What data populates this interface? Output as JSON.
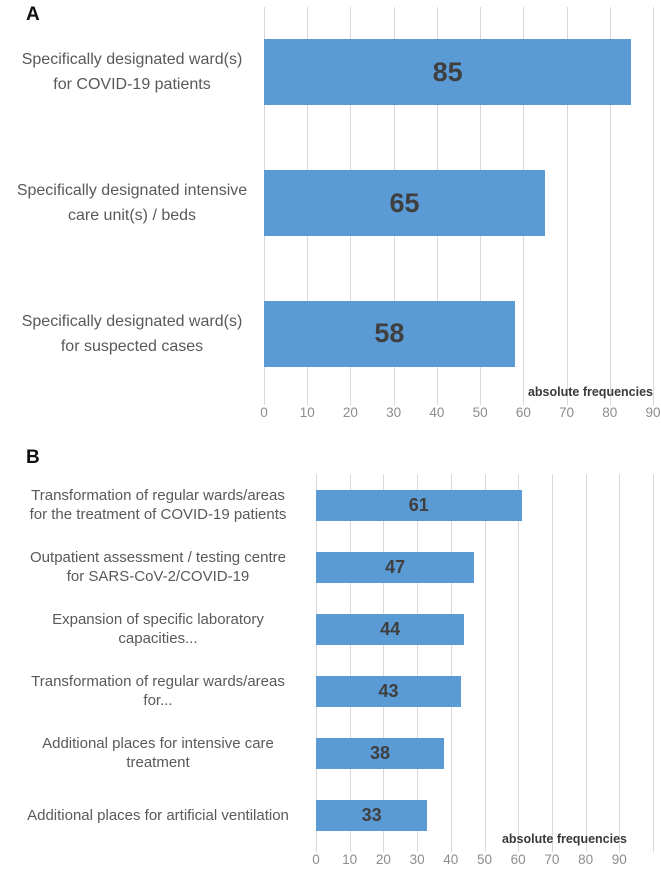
{
  "page": {
    "background": "#ffffff"
  },
  "chart_data": [
    {
      "panel_label": "A",
      "type": "bar",
      "orientation": "horizontal",
      "title": "",
      "categories": [
        "Specifically designated ward(s) for COVID-19 patients",
        "Specifically designated intensive care unit(s) / beds",
        "Specifically designated ward(s) for suspected cases"
      ],
      "category_lines": [
        [
          "Specifically designated ward(s)",
          "for COVID-19 patients"
        ],
        [
          "Specifically designated intensive",
          "care unit(s) / beds"
        ],
        [
          "Specifically designated ward(s)",
          "for suspected cases"
        ]
      ],
      "values": [
        85,
        65,
        58
      ],
      "xlabel": "absolute frequencies",
      "ylabel": "",
      "ticks": [
        0,
        10,
        20,
        30,
        40,
        50,
        60,
        70,
        80,
        90
      ],
      "xlim": [
        0,
        90
      ],
      "grid_step": 10,
      "grid": true,
      "legend": false,
      "bar_color": "#5b9bd5",
      "value_label_color": "#3f3f3f",
      "gridline_color": "#d9d9d9"
    },
    {
      "panel_label": "B",
      "type": "bar",
      "orientation": "horizontal",
      "title": "",
      "categories": [
        "Transformation of regular wards/areas for the treatment of COVID-19 patients",
        "Outpatient assessment / testing centre for SARS-CoV-2/COVID-19",
        "Expansion of specific laboratory capacities...",
        "Transformation of regular wards/areas for...",
        "Additional places for intensive care treatment",
        "Additional places for artificial ventilation"
      ],
      "category_lines": [
        [
          "Transformation of regular wards/areas",
          "for the treatment of COVID-19 patients"
        ],
        [
          "Outpatient assessment / testing centre",
          "for SARS-CoV-2/COVID-19"
        ],
        [
          "Expansion of specific laboratory",
          "capacities..."
        ],
        [
          "Transformation of regular wards/areas",
          "for..."
        ],
        [
          "Additional places for intensive care",
          "treatment"
        ],
        [
          "Additional places for artificial ventilation"
        ]
      ],
      "values": [
        61,
        47,
        44,
        43,
        38,
        33
      ],
      "xlabel": "absolute frequencies",
      "ylabel": "",
      "ticks": [
        0,
        10,
        20,
        30,
        40,
        50,
        60,
        70,
        80,
        90
      ],
      "xlim": [
        0,
        100
      ],
      "grid_step": 10,
      "grid": true,
      "legend": false,
      "bar_color": "#5b9bd5",
      "value_label_color": "#3f3f3f",
      "gridline_color": "#d9d9d9"
    }
  ]
}
